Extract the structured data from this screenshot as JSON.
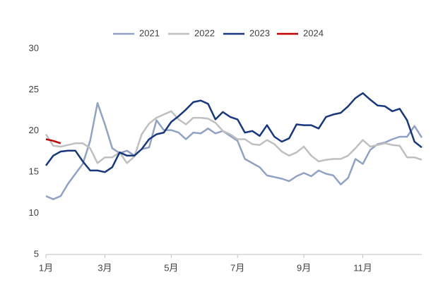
{
  "chart_data": {
    "type": "line",
    "categories": [
      "1月",
      null,
      null,
      null,
      null,
      null,
      null,
      null,
      "3月",
      null,
      null,
      null,
      null,
      null,
      null,
      null,
      null,
      "5月",
      null,
      null,
      null,
      null,
      null,
      null,
      null,
      null,
      "7月",
      null,
      null,
      null,
      null,
      null,
      null,
      null,
      null,
      "9月",
      null,
      null,
      null,
      null,
      null,
      null,
      null,
      "11月",
      null,
      null,
      null,
      null,
      null,
      null,
      null,
      null
    ],
    "series": [
      {
        "name": "2021",
        "color": "#8fa2c6",
        "values": [
          12.1,
          11.7,
          12.1,
          13.6,
          14.8,
          16.0,
          18.8,
          23.4,
          20.8,
          17.9,
          17.3,
          17.6,
          17.0,
          17.8,
          18.0,
          21.3,
          20.1,
          20.1,
          19.8,
          19.0,
          19.8,
          19.7,
          20.3,
          19.7,
          20.0,
          19.4,
          18.8,
          16.6,
          16.1,
          15.6,
          14.6,
          14.4,
          14.2,
          13.9,
          14.5,
          14.9,
          14.5,
          15.2,
          14.8,
          14.6,
          13.5,
          14.3,
          16.6,
          16.0,
          17.7,
          18.4,
          18.6,
          19.0,
          19.3,
          19.3,
          20.6,
          19.2
        ]
      },
      {
        "name": "2022",
        "color": "#bfbfbf",
        "values": [
          19.6,
          18.2,
          18.1,
          18.3,
          18.5,
          18.5,
          17.9,
          16.1,
          16.8,
          16.8,
          17.4,
          16.1,
          16.9,
          19.6,
          20.9,
          21.6,
          22.0,
          22.4,
          21.4,
          20.8,
          21.6,
          21.6,
          21.5,
          21.0,
          20.0,
          19.6,
          19.0,
          19.0,
          18.4,
          18.3,
          18.9,
          18.4,
          17.5,
          17.0,
          17.4,
          18.1,
          17.0,
          16.3,
          16.5,
          16.6,
          16.6,
          17.0,
          17.9,
          18.9,
          18.1,
          18.3,
          18.5,
          18.3,
          18.2,
          16.8,
          16.8,
          16.5
        ]
      },
      {
        "name": "2023",
        "color": "#17387e",
        "values": [
          15.8,
          17.0,
          17.5,
          17.6,
          17.6,
          16.3,
          15.2,
          15.2,
          15.0,
          15.6,
          17.4,
          17.0,
          17.0,
          17.8,
          19.0,
          19.6,
          19.8,
          21.1,
          21.8,
          22.6,
          23.5,
          23.7,
          23.3,
          21.4,
          22.3,
          21.7,
          21.4,
          19.8,
          20.0,
          19.4,
          20.7,
          19.3,
          18.7,
          19.1,
          20.8,
          20.7,
          20.7,
          20.3,
          21.7,
          22.0,
          22.2,
          23.0,
          24.0,
          24.6,
          23.8,
          23.1,
          23.0,
          22.4,
          22.7,
          21.3,
          18.7,
          18.0
        ]
      },
      {
        "name": "2024",
        "color": "#c00000",
        "values": [
          19.0,
          18.8,
          18.5,
          null,
          null,
          null,
          null,
          null,
          null,
          null,
          null,
          null,
          null,
          null,
          null,
          null,
          null,
          null,
          null,
          null,
          null,
          null,
          null,
          null,
          null,
          null,
          null,
          null,
          null,
          null,
          null,
          null,
          null,
          null,
          null,
          null,
          null,
          null,
          null,
          null,
          null,
          null,
          null,
          null,
          null,
          null,
          null,
          null,
          null,
          null,
          null,
          null
        ]
      }
    ],
    "ylim": [
      5,
      30
    ],
    "yticks": [
      5,
      10,
      15,
      20,
      25,
      30
    ],
    "grid": false,
    "legend": "top"
  }
}
